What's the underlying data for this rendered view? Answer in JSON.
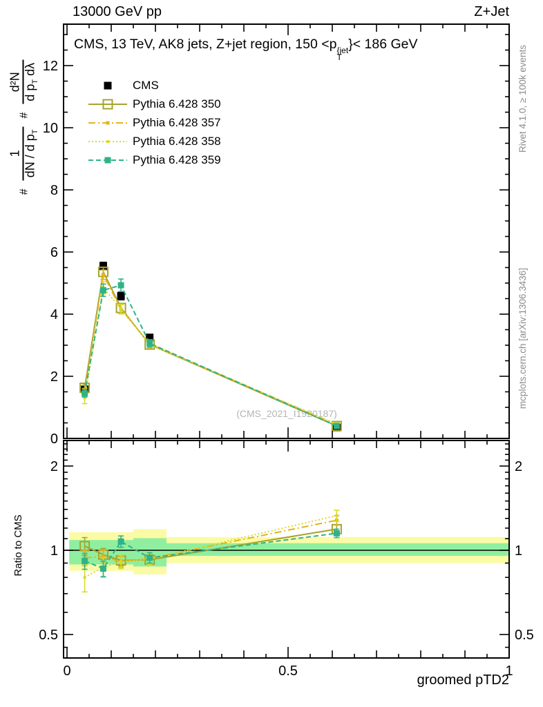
{
  "header": {
    "left": "13000 GeV pp",
    "right": "Z+Jet"
  },
  "title": {
    "prefix": "CMS, 13 TeV, AK8 jets, Z+jet region, 150 <p",
    "sup": "{jet",
    "sub": "T",
    "suffix": "}< 186 GeV"
  },
  "ylabel": {
    "hash1": "#",
    "frac1_num": "1",
    "frac1_den": "dN / d p",
    "frac1_den_sub": "T",
    "hash2": "#",
    "frac2_num": "d²N",
    "frac2_den_a": "d p",
    "frac2_den_a_sub": "T",
    "frac2_den_b": " dλ"
  },
  "ratio_ylabel": "Ratio to CMS",
  "xlabel": "groomed pTD2",
  "watermark": "(CMS_2021_I1920187)",
  "side_notes": {
    "top": "Rivet 4.1.0, ≥ 100k events",
    "bottom": "mcplots.cern.ch [arXiv:1306.3436]"
  },
  "colors": {
    "axis": "#000000",
    "band_yellow": "#fbfba6",
    "band_green": "#8fef9f",
    "note_gray": "#8c8c8c",
    "watermark_gray": "#b4b4b4",
    "cms": "#000000",
    "pythia350": "#a4a42e",
    "pythia357": "#e0b420",
    "pythia358": "#d8dc28",
    "pythia359": "#2eb388"
  },
  "chart_data": {
    "type": "line",
    "title": "CMS, 13 TeV, AK8 jets, Z+jet region, 150 <pT{jet}< 186 GeV",
    "xlabel": "groomed pTD2",
    "xlim": [
      0,
      1
    ],
    "xticks": [
      0,
      0.5,
      1
    ],
    "x": [
      0.04,
      0.082,
      0.122,
      0.187,
      0.61
    ],
    "bin_edges": [
      0.005,
      0.0625,
      0.1,
      0.15,
      0.225,
      1.0
    ],
    "top_panel": {
      "ylim": [
        0,
        13.3
      ],
      "yticks": [
        0,
        2,
        4,
        6,
        8,
        10,
        12
      ],
      "minor_step": 0.5,
      "grid": false
    },
    "ratio_panel": {
      "yscale": "log",
      "ylim": [
        0.41,
        2.47
      ],
      "yticks": [
        0.5,
        1,
        2
      ],
      "reference_line": 1,
      "bands": {
        "yellow": [
          [
            0.005,
            0.0625,
            0.845,
            1.16
          ],
          [
            0.0625,
            0.1,
            0.845,
            1.16
          ],
          [
            0.1,
            0.15,
            0.845,
            1.16
          ],
          [
            0.15,
            0.225,
            0.82,
            1.19
          ],
          [
            0.225,
            1.0,
            0.9,
            1.115
          ]
        ],
        "green": [
          [
            0.005,
            0.0625,
            0.89,
            1.088
          ],
          [
            0.0625,
            0.1,
            0.89,
            1.088
          ],
          [
            0.1,
            0.15,
            0.89,
            1.088
          ],
          [
            0.15,
            0.225,
            0.875,
            1.105
          ],
          [
            0.225,
            1.0,
            0.955,
            1.06
          ]
        ]
      }
    },
    "series": [
      {
        "name": "CMS",
        "color": "#000000",
        "marker": "filled-square",
        "msize": 11,
        "top": {
          "values": [
            1.58,
            5.55,
            4.58,
            3.25,
            0.35
          ],
          "errors": [
            0.1,
            0.12,
            0.12,
            0.1,
            0.03
          ]
        }
      },
      {
        "name": "Pythia 6.428 350",
        "color": "#a4a42e",
        "dash": "solid",
        "marker": "open-square",
        "msize": 13,
        "top": {
          "values": [
            1.63,
            5.36,
            4.2,
            3.02,
            0.4
          ],
          "errors": [
            0.12,
            0.15,
            0.15,
            0.1,
            0.03
          ]
        },
        "ratio": {
          "values": [
            1.035,
            0.965,
            0.92,
            0.925,
            1.19
          ],
          "errors": [
            0.075,
            0.05,
            0.04,
            0.035,
            0.04
          ]
        }
      },
      {
        "name": "Pythia 6.428 357",
        "color": "#e0b420",
        "dash": "dashdot",
        "marker": "filled-square",
        "msize": 5,
        "top": {
          "values": [
            1.49,
            5.27,
            4.16,
            3.04,
            0.44
          ],
          "errors": [
            0.12,
            0.15,
            0.15,
            0.1,
            0.03
          ]
        },
        "ratio": {
          "values": [
            0.94,
            0.95,
            0.91,
            0.935,
            1.28
          ],
          "errors": [
            0.06,
            0.05,
            0.04,
            0.035,
            0.05
          ]
        }
      },
      {
        "name": "Pythia 6.428 358",
        "color": "#d8dc28",
        "dash": "dotted",
        "marker": "filled-square",
        "msize": 4,
        "top": {
          "values": [
            1.3,
            4.85,
            4.17,
            3.02,
            0.46
          ],
          "errors": [
            0.18,
            0.2,
            0.15,
            0.1,
            0.04
          ]
        },
        "ratio": {
          "values": [
            0.8,
            0.87,
            0.91,
            0.93,
            1.33
          ],
          "errors": [
            0.09,
            0.07,
            0.05,
            0.04,
            0.06
          ]
        }
      },
      {
        "name": "Pythia 6.428 359",
        "color": "#2eb388",
        "dash": "dashed",
        "marker": "filled-square",
        "msize": 9,
        "top": {
          "values": [
            1.45,
            4.77,
            4.93,
            3.06,
            0.4
          ],
          "errors": [
            0.12,
            0.2,
            0.2,
            0.12,
            0.03
          ]
        },
        "ratio": {
          "values": [
            0.915,
            0.86,
            1.075,
            0.94,
            1.15
          ],
          "errors": [
            0.06,
            0.055,
            0.05,
            0.04,
            0.04
          ]
        }
      }
    ]
  }
}
